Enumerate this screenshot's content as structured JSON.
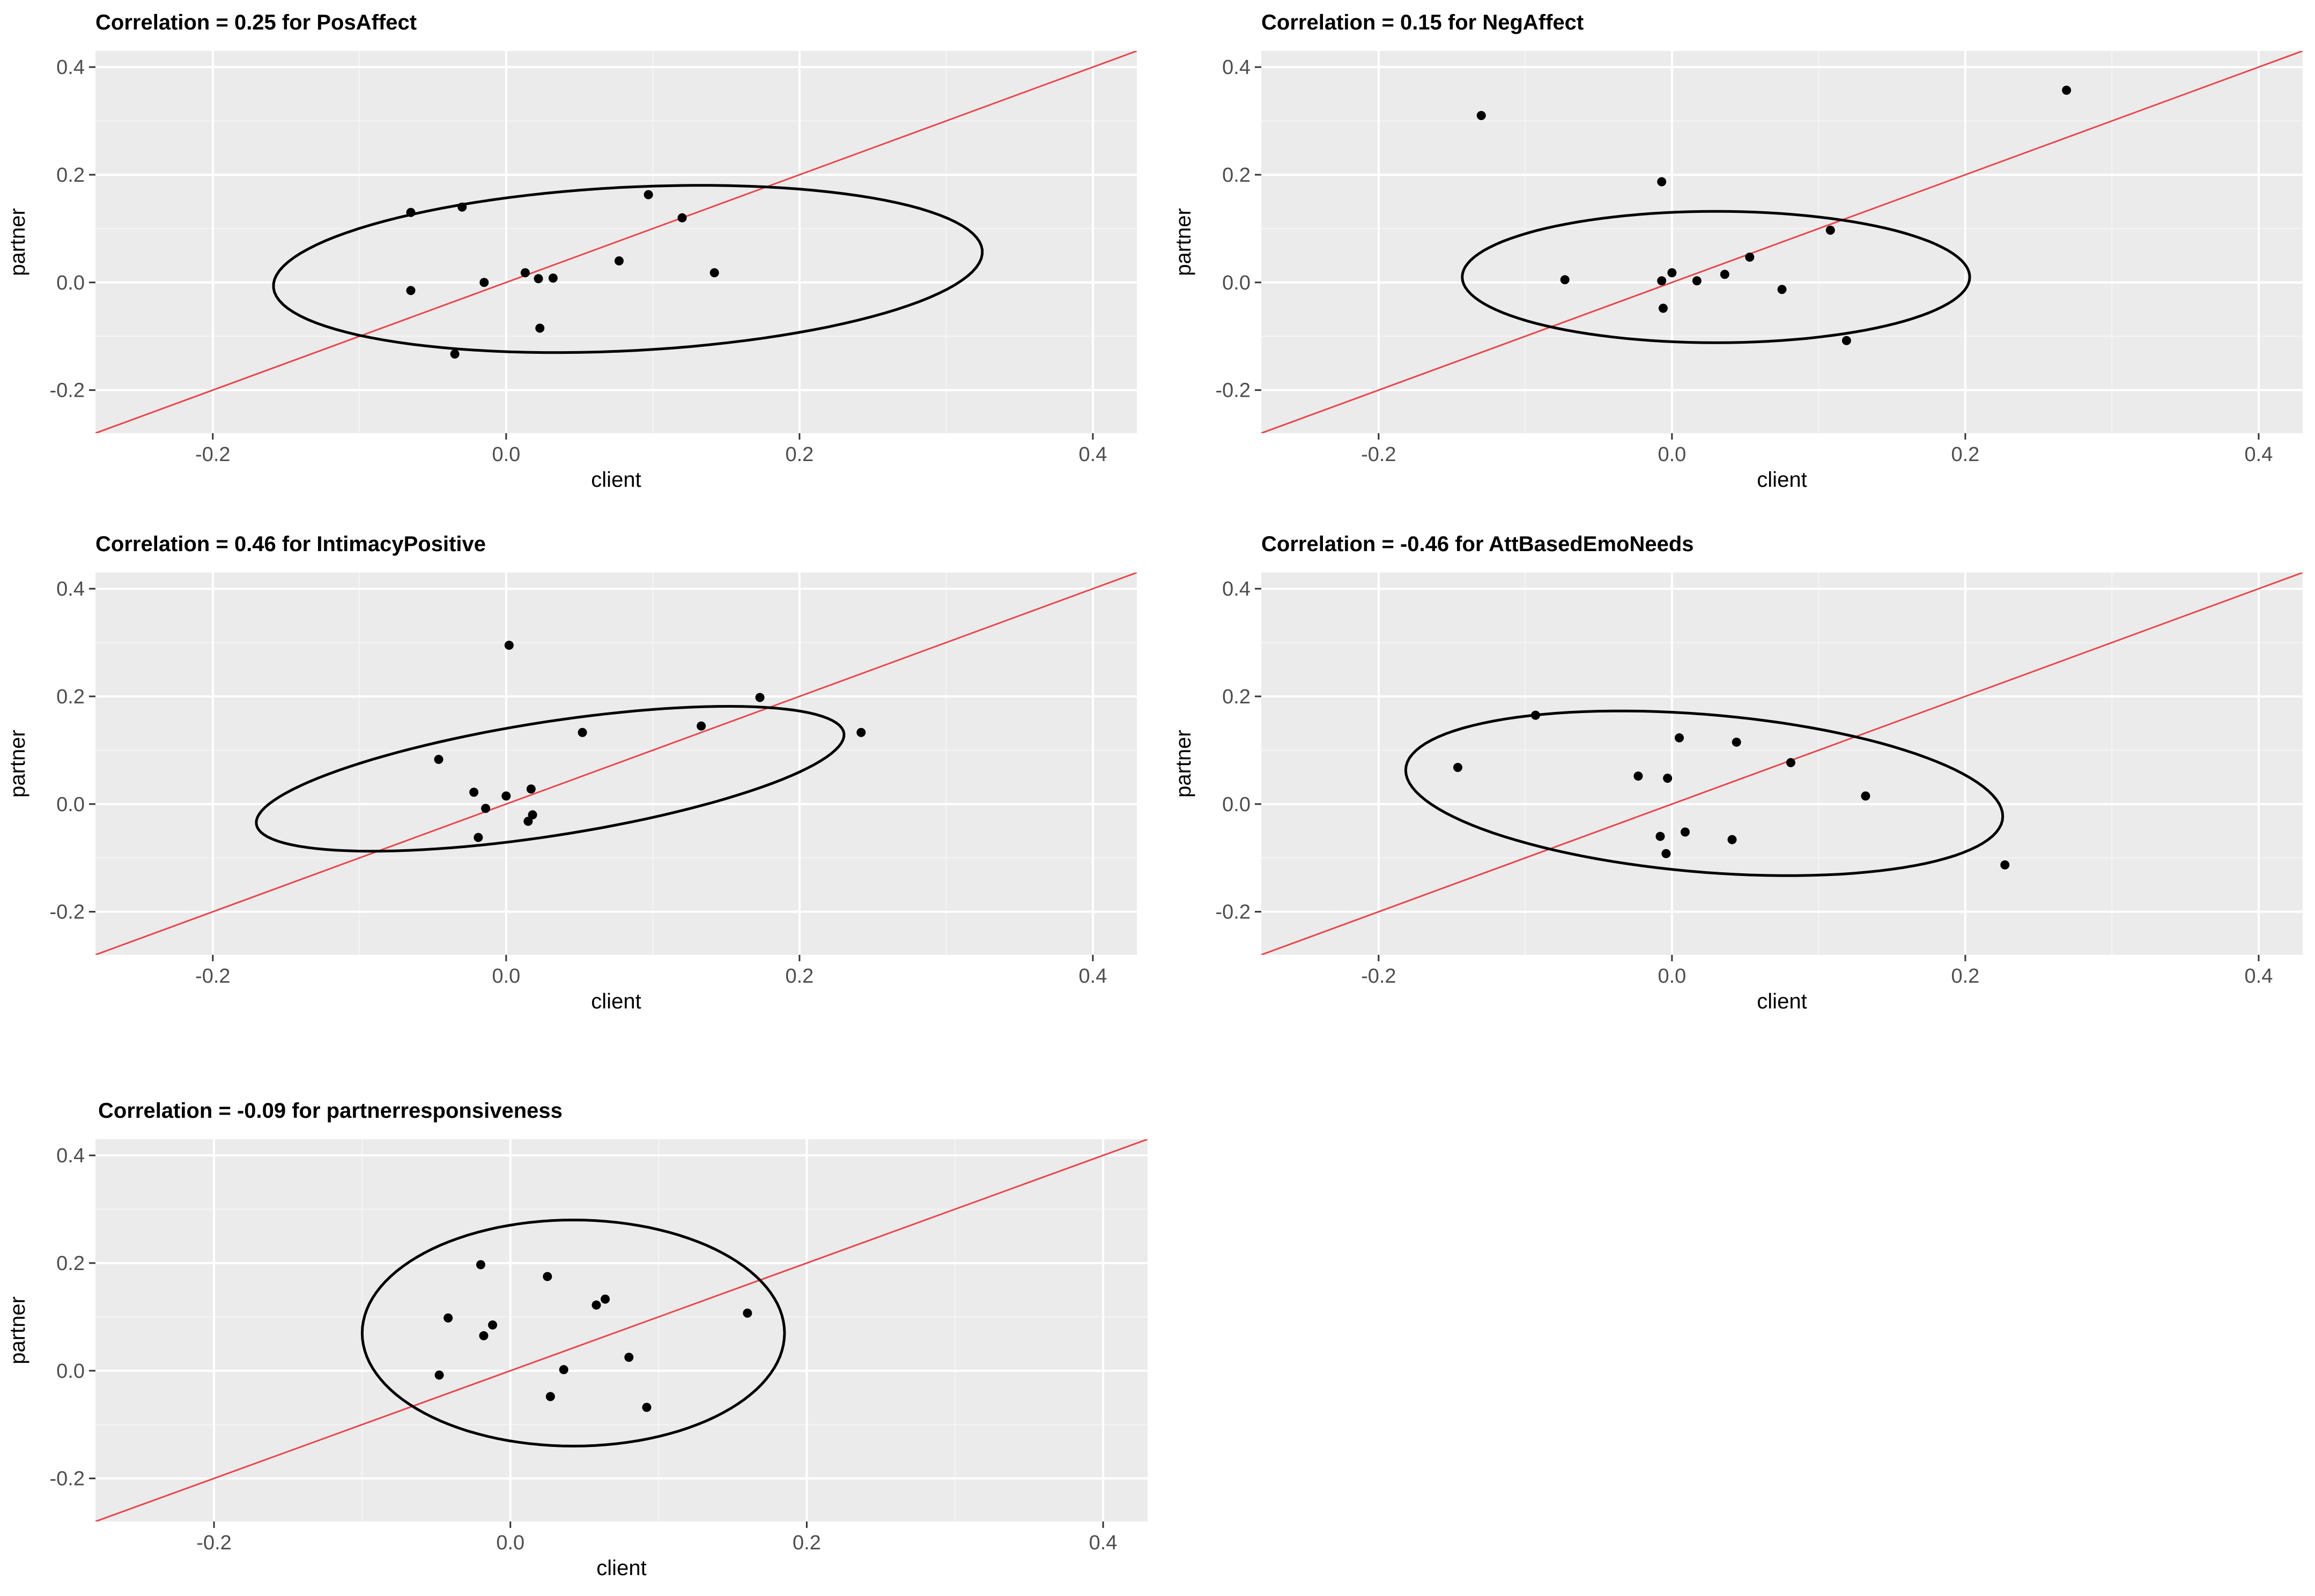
{
  "colors": {
    "panel_bg": "#ebebeb",
    "grid_major": "#ffffff",
    "grid_minor": "#f5f5f5",
    "point": "#000000",
    "ellipse": "#000000",
    "identity_line": "#e8474c",
    "tick_text": "#4d4d4d"
  },
  "chart_data": [
    {
      "type": "scatter",
      "title": "Correlation = 0.25 for PosAffect",
      "xlabel": "client",
      "ylabel": "partner",
      "xlim": [
        -0.28,
        0.43
      ],
      "ylim": [
        -0.28,
        0.43
      ],
      "xticks": [
        -0.2,
        0.0,
        0.2,
        0.4
      ],
      "yticks": [
        -0.2,
        0.0,
        0.2,
        0.4
      ],
      "xtick_labels": [
        "-0.2",
        "0.0",
        "0.2",
        "0.4"
      ],
      "ytick_labels": [
        "-0.2",
        "0.0",
        "0.2",
        "0.4"
      ],
      "grid": true,
      "reference_line": "y = x",
      "ellipse": {
        "center": [
          0.083,
          0.025
        ],
        "semi_major": 0.245,
        "semi_minor": 0.15,
        "angle_deg": 12
      },
      "points": [
        [
          -0.065,
          0.13
        ],
        [
          -0.03,
          0.14
        ],
        [
          -0.065,
          -0.015
        ],
        [
          -0.015,
          0.0
        ],
        [
          0.013,
          0.018
        ],
        [
          0.022,
          0.007
        ],
        [
          0.032,
          0.008
        ],
        [
          0.023,
          -0.085
        ],
        [
          -0.035,
          -0.133
        ],
        [
          0.077,
          0.04
        ],
        [
          0.097,
          0.163
        ],
        [
          0.12,
          0.12
        ],
        [
          0.142,
          0.018
        ]
      ]
    },
    {
      "type": "scatter",
      "title": "Correlation = 0.15 for NegAffect",
      "xlabel": "client",
      "ylabel": "partner",
      "xlim": [
        -0.28,
        0.43
      ],
      "ylim": [
        -0.28,
        0.43
      ],
      "xticks": [
        -0.2,
        0.0,
        0.2,
        0.4
      ],
      "yticks": [
        -0.2,
        0.0,
        0.2,
        0.4
      ],
      "xtick_labels": [
        "-0.2",
        "0.0",
        "0.2",
        "0.4"
      ],
      "ytick_labels": [
        "-0.2",
        "0.0",
        "0.2",
        "0.4"
      ],
      "grid": true,
      "reference_line": "y = x",
      "ellipse": {
        "center": [
          0.03,
          0.01
        ],
        "semi_major": 0.173,
        "semi_minor": 0.122,
        "angle_deg": 0
      },
      "points": [
        [
          -0.13,
          0.31
        ],
        [
          -0.007,
          0.187
        ],
        [
          -0.073,
          0.005
        ],
        [
          -0.007,
          0.003
        ],
        [
          0.0,
          0.018
        ],
        [
          0.017,
          0.003
        ],
        [
          0.036,
          0.015
        ],
        [
          0.053,
          0.047
        ],
        [
          -0.006,
          -0.048
        ],
        [
          0.075,
          -0.013
        ],
        [
          0.108,
          0.097
        ],
        [
          0.119,
          -0.108
        ],
        [
          0.269,
          0.357
        ]
      ]
    },
    {
      "type": "scatter",
      "title": "Correlation = 0.46 for IntimacyPositive",
      "xlabel": "client",
      "ylabel": "partner",
      "xlim": [
        -0.28,
        0.43
      ],
      "ylim": [
        -0.28,
        0.43
      ],
      "xticks": [
        -0.2,
        0.0,
        0.2,
        0.4
      ],
      "yticks": [
        -0.2,
        0.0,
        0.2,
        0.4
      ],
      "xtick_labels": [
        "-0.2",
        "0.0",
        "0.2",
        "0.4"
      ],
      "ytick_labels": [
        "-0.2",
        "0.0",
        "0.2",
        "0.4"
      ],
      "grid": true,
      "reference_line": "y = x",
      "ellipse": {
        "center": [
          0.03,
          0.047
        ],
        "semi_major": 0.221,
        "semi_minor": 0.097,
        "angle_deg": 28
      },
      "points": [
        [
          0.002,
          0.295
        ],
        [
          -0.046,
          0.083
        ],
        [
          -0.022,
          0.022
        ],
        [
          -0.014,
          -0.008
        ],
        [
          0.0,
          0.015
        ],
        [
          0.017,
          0.028
        ],
        [
          0.018,
          -0.02
        ],
        [
          0.015,
          -0.032
        ],
        [
          -0.019,
          -0.062
        ],
        [
          0.052,
          0.133
        ],
        [
          0.133,
          0.145
        ],
        [
          0.173,
          0.198
        ],
        [
          0.242,
          0.133
        ]
      ]
    },
    {
      "type": "scatter",
      "title": "Correlation = -0.46 for AttBasedEmoNeeds",
      "xlabel": "client",
      "ylabel": "partner",
      "xlim": [
        -0.28,
        0.43
      ],
      "ylim": [
        -0.28,
        0.43
      ],
      "xticks": [
        -0.2,
        0.0,
        0.2,
        0.4
      ],
      "yticks": [
        -0.2,
        0.0,
        0.2,
        0.4
      ],
      "xtick_labels": [
        "-0.2",
        "0.0",
        "0.2",
        "0.4"
      ],
      "ytick_labels": [
        "-0.2",
        "0.0",
        "0.2",
        "0.4"
      ],
      "grid": true,
      "reference_line": "y = x",
      "ellipse": {
        "center": [
          0.022,
          0.02
        ],
        "semi_major": 0.212,
        "semi_minor": 0.141,
        "angle_deg": -22
      },
      "points": [
        [
          -0.146,
          0.068
        ],
        [
          -0.093,
          0.165
        ],
        [
          -0.023,
          0.052
        ],
        [
          -0.003,
          0.048
        ],
        [
          0.005,
          0.123
        ],
        [
          0.044,
          0.115
        ],
        [
          0.081,
          0.077
        ],
        [
          0.132,
          0.015
        ],
        [
          -0.008,
          -0.06
        ],
        [
          0.009,
          -0.052
        ],
        [
          -0.004,
          -0.092
        ],
        [
          0.041,
          -0.066
        ],
        [
          0.227,
          -0.113
        ]
      ]
    },
    {
      "type": "scatter",
      "title": "Correlation = -0.09 for partnerresponsiveness",
      "xlabel": "client",
      "ylabel": "partner",
      "xlim": [
        -0.28,
        0.43
      ],
      "ylim": [
        -0.28,
        0.43
      ],
      "xticks": [
        -0.2,
        0.0,
        0.2,
        0.4
      ],
      "yticks": [
        -0.2,
        0.0,
        0.2,
        0.4
      ],
      "xtick_labels": [
        "-0.2",
        "0.0",
        "0.2",
        "0.4"
      ],
      "ytick_labels": [
        "-0.2",
        "0.0",
        "0.2",
        "0.4"
      ],
      "grid": true,
      "reference_line": "y = x",
      "ellipse": {
        "center": [
          0.0425,
          0.07
        ],
        "semi_major": 0.1425,
        "semi_minor": 0.21,
        "angle_deg": 0,
        "note": "semi_major along x, semi_minor along y"
      },
      "points": [
        [
          -0.02,
          0.197
        ],
        [
          0.025,
          0.175
        ],
        [
          -0.042,
          0.098
        ],
        [
          -0.012,
          0.085
        ],
        [
          -0.018,
          0.065
        ],
        [
          0.058,
          0.122
        ],
        [
          0.064,
          0.133
        ],
        [
          0.08,
          0.025
        ],
        [
          0.036,
          0.002
        ],
        [
          0.027,
          -0.048
        ],
        [
          -0.048,
          -0.008
        ],
        [
          0.092,
          -0.068
        ],
        [
          0.16,
          0.107
        ]
      ]
    }
  ]
}
